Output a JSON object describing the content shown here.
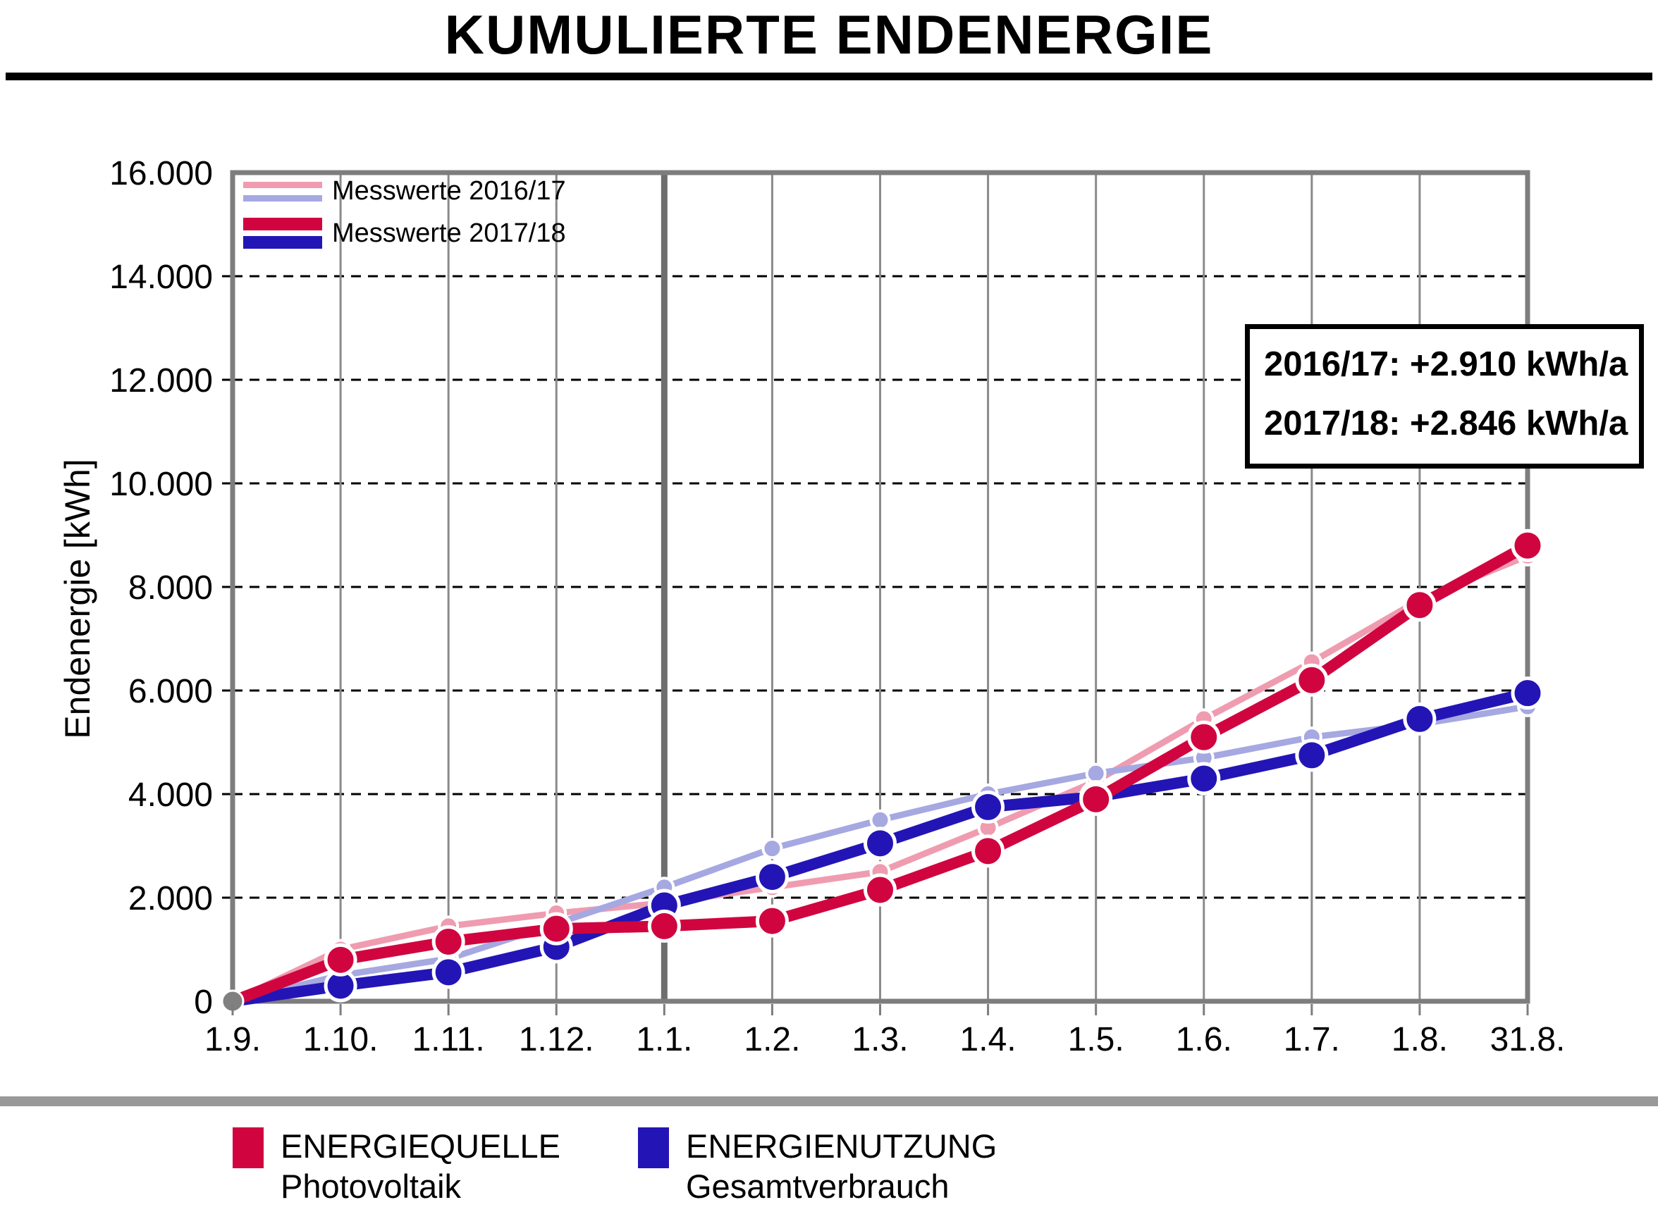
{
  "title": "KUMULIERTE ENDENERGIE",
  "y_axis": {
    "label": "Endenergie [kWh]",
    "ticks": [
      {
        "value": 16000,
        "label": "16.000"
      },
      {
        "value": 14000,
        "label": "14.000"
      },
      {
        "value": 12000,
        "label": "12.000"
      },
      {
        "value": 10000,
        "label": "10.000"
      },
      {
        "value": 8000,
        "label": "8.000"
      },
      {
        "value": 6000,
        "label": "6.000"
      },
      {
        "value": 4000,
        "label": "4.000"
      },
      {
        "value": 2000,
        "label": "2.000"
      },
      {
        "value": 0,
        "label": "0"
      }
    ]
  },
  "x_axis": {
    "labels": [
      "1.9.",
      "1.10.",
      "1.11.",
      "1.12.",
      "1.1.",
      "1.2.",
      "1.3.",
      "1.4.",
      "1.5.",
      "1.6.",
      "1.7.",
      "1.8.",
      "31.8."
    ]
  },
  "plot_legend": [
    {
      "label": "Messwerte 2016/17"
    },
    {
      "label": "Messwerte 2017/18"
    }
  ],
  "annotation": {
    "line1": "2016/17: +2.910 kWh/a",
    "line2": "2017/18: +2.846 kWh/a"
  },
  "bottom_legend": [
    {
      "title": "ENERGIEQUELLE",
      "subtitle": "Photovoltaik",
      "color": "#D0053F"
    },
    {
      "title": "ENERGIENUTZUNG",
      "subtitle": "Gesamtverbrauch",
      "color": "#2315B5"
    }
  ],
  "colors": {
    "pv_2016_17": "#EF9CB0",
    "verbrauch_2016_17": "#A6A8E1",
    "pv_2017_18": "#D0053F",
    "verbrauch_2017_18": "#2315B5",
    "axis": "#7D7D7D",
    "grid": "#8A8A8A",
    "grid_year": "#6E6E6E",
    "divider": "#999999",
    "origin_point": "#808080",
    "gridline_dotted": "#000000"
  },
  "chart_data": {
    "type": "line",
    "title": "KUMULIERTE ENDENERGIE",
    "ylabel": "Endenergie [kWh]",
    "xlabel": "",
    "ylim": [
      0,
      16000
    ],
    "y_tick_step": 2000,
    "grid": {
      "vertical": "solid gray line at every month tick",
      "vertical_emphasized_at": "1.1.",
      "horizontal": "dotted black line every 2.000 kWh"
    },
    "legend_position": "top-left",
    "categories": [
      "1.9.",
      "1.10.",
      "1.11.",
      "1.12.",
      "1.1.",
      "1.2.",
      "1.3.",
      "1.4.",
      "1.5.",
      "1.6.",
      "1.7.",
      "1.8.",
      "31.8."
    ],
    "series": [
      {
        "id": "pv-2016-17",
        "name": "Messwerte 2016/17 – Energiequelle Photovoltaik",
        "color": "#EF9CB0",
        "line": "thin",
        "values": [
          0,
          1000,
          1450,
          1700,
          1900,
          2200,
          2500,
          3350,
          4250,
          5450,
          6550,
          7750,
          8600
        ]
      },
      {
        "id": "verbrauch-2016-17",
        "name": "Messwerte 2016/17 – Energienutzung Gesamtverbrauch",
        "color": "#A6A8E1",
        "line": "thin",
        "values": [
          0,
          500,
          820,
          1500,
          2200,
          2950,
          3500,
          4000,
          4400,
          4700,
          5100,
          5350,
          5690
        ]
      },
      {
        "id": "verbrauch-2017-18",
        "name": "Messwerte 2017/18 – Energienutzung Gesamtverbrauch",
        "color": "#2315B5",
        "line": "thick",
        "values": [
          0,
          300,
          560,
          1050,
          1850,
          2400,
          3050,
          3750,
          3950,
          4300,
          4750,
          5450,
          5950
        ]
      },
      {
        "id": "pv-2017-18",
        "name": "Messwerte 2017/18 – Energiequelle Photovoltaik",
        "color": "#D0053F",
        "line": "thick",
        "values": [
          0,
          800,
          1150,
          1400,
          1450,
          1550,
          2150,
          2900,
          3900,
          5100,
          6200,
          7650,
          8800
        ]
      }
    ],
    "annotations": [
      "2016/17: +2.910 kWh/a",
      "2017/18: +2.846 kWh/a"
    ]
  }
}
